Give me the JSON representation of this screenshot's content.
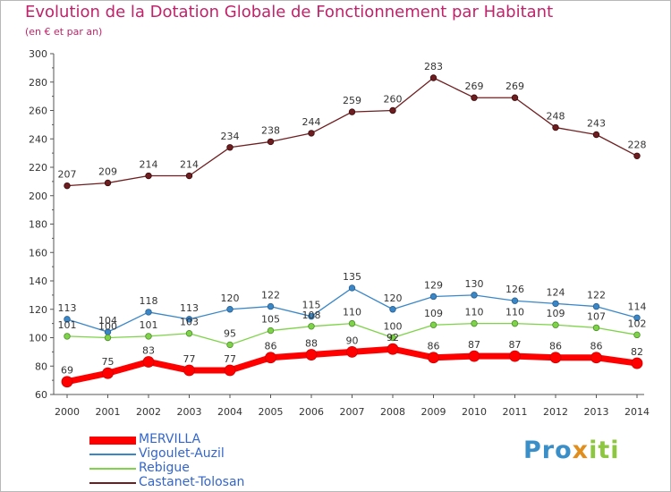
{
  "header": {
    "title": "Evolution de la Dotation Globale de Fonctionnement par Habitant",
    "subtitle": "(en € et par an)"
  },
  "logo": {
    "text": "Proxiti"
  },
  "chart_data": {
    "type": "line",
    "x": [
      "2000",
      "2001",
      "2002",
      "2003",
      "2004",
      "2005",
      "2006",
      "2007",
      "2008",
      "2009",
      "2010",
      "2011",
      "2012",
      "2013",
      "2014"
    ],
    "ylim": [
      60,
      300
    ],
    "yticks": [
      60,
      80,
      100,
      120,
      140,
      160,
      180,
      200,
      220,
      240,
      260,
      280,
      300
    ],
    "grid": false,
    "legend_position": "bottom-left",
    "series": [
      {
        "name": "MERVILLA",
        "color": "#ff0000",
        "values": [
          69,
          75,
          83,
          77,
          77,
          86,
          88,
          90,
          92,
          86,
          87,
          87,
          86,
          86,
          82
        ]
      },
      {
        "name": "Vigoulet-Auzil",
        "color": "#3a87c8",
        "values": [
          113,
          104,
          118,
          113,
          120,
          122,
          115,
          135,
          120,
          129,
          130,
          126,
          124,
          122,
          114
        ]
      },
      {
        "name": "Rebigue",
        "color": "#7ed348",
        "values": [
          101,
          100,
          101,
          103,
          95,
          105,
          108,
          110,
          100,
          109,
          110,
          110,
          109,
          107,
          102
        ]
      },
      {
        "name": "Castanet-Tolosan",
        "color": "#6e1e20",
        "values": [
          207,
          209,
          214,
          214,
          234,
          238,
          244,
          259,
          260,
          283,
          269,
          269,
          248,
          243,
          228
        ]
      }
    ]
  }
}
